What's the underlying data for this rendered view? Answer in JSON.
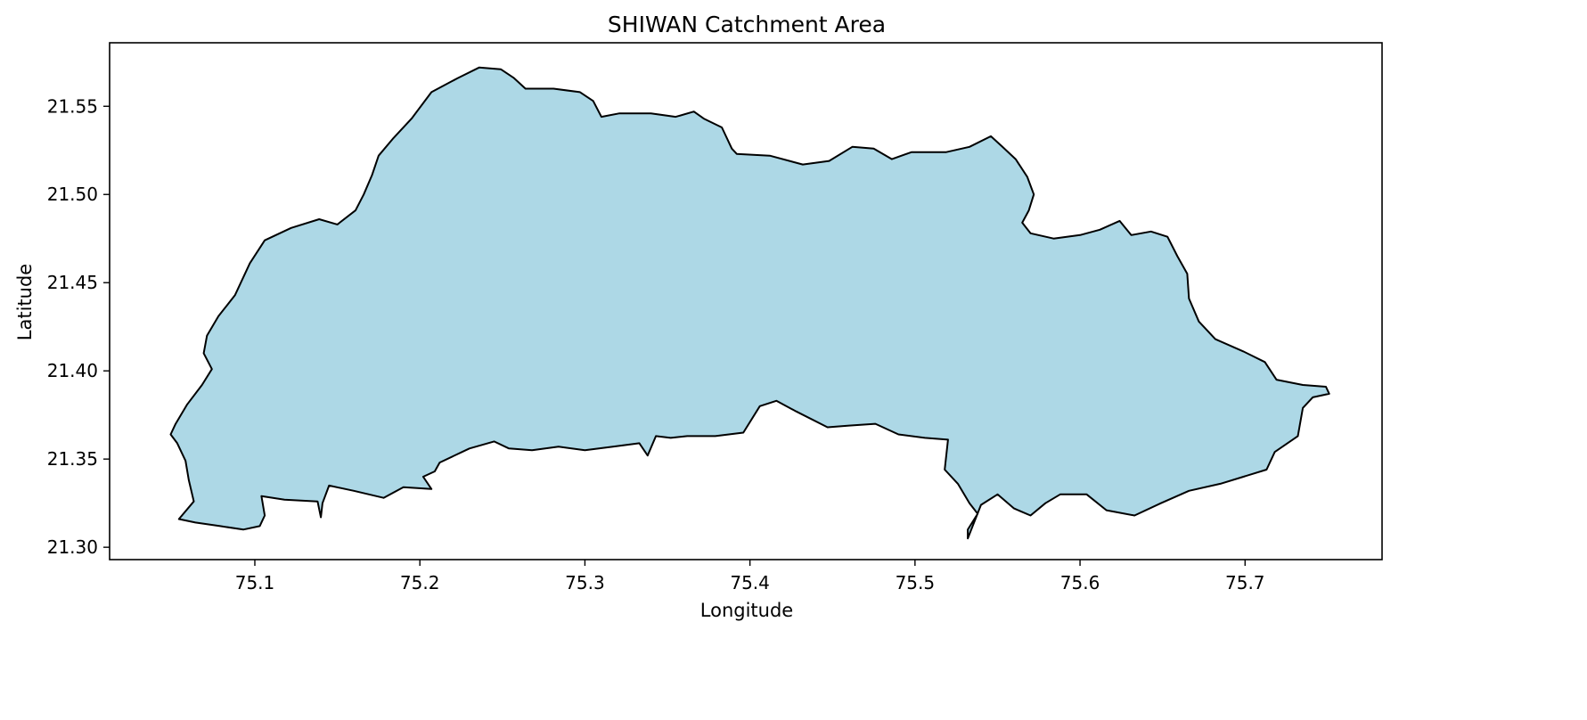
{
  "chart_data": {
    "type": "map",
    "title": "SHIWAN Catchment Area",
    "xlabel": "Longitude",
    "ylabel": "Latitude",
    "xlim": [
      75.012,
      75.783
    ],
    "ylim": [
      21.293,
      21.586
    ],
    "xticks": [
      "75.1",
      "75.2",
      "75.3",
      "75.4",
      "75.5",
      "75.6",
      "75.7"
    ],
    "yticks": [
      "21.30",
      "21.35",
      "21.40",
      "21.45",
      "21.50",
      "21.55"
    ],
    "grid": false,
    "legend": "none",
    "colors": {
      "fill": "#add8e6",
      "edge": "#000000"
    },
    "boundary": [
      [
        75.054,
        21.316
      ],
      [
        75.063,
        21.326
      ],
      [
        75.06,
        21.338
      ],
      [
        75.058,
        21.349
      ],
      [
        75.053,
        21.359
      ],
      [
        75.049,
        21.364
      ],
      [
        75.052,
        21.37
      ],
      [
        75.059,
        21.381
      ],
      [
        75.068,
        21.392
      ],
      [
        75.074,
        21.401
      ],
      [
        75.069,
        21.41
      ],
      [
        75.071,
        21.42
      ],
      [
        75.078,
        21.431
      ],
      [
        75.088,
        21.443
      ],
      [
        75.097,
        21.461
      ],
      [
        75.106,
        21.474
      ],
      [
        75.122,
        21.481
      ],
      [
        75.139,
        21.486
      ],
      [
        75.15,
        21.483
      ],
      [
        75.161,
        21.491
      ],
      [
        75.166,
        21.5
      ],
      [
        75.171,
        21.511
      ],
      [
        75.175,
        21.522
      ],
      [
        75.184,
        21.532
      ],
      [
        75.195,
        21.543
      ],
      [
        75.207,
        21.558
      ],
      [
        75.223,
        21.566
      ],
      [
        75.236,
        21.572
      ],
      [
        75.249,
        21.571
      ],
      [
        75.257,
        21.566
      ],
      [
        75.264,
        21.56
      ],
      [
        75.281,
        21.56
      ],
      [
        75.297,
        21.558
      ],
      [
        75.305,
        21.553
      ],
      [
        75.31,
        21.544
      ],
      [
        75.321,
        21.546
      ],
      [
        75.34,
        21.546
      ],
      [
        75.355,
        21.544
      ],
      [
        75.366,
        21.547
      ],
      [
        75.372,
        21.543
      ],
      [
        75.383,
        21.538
      ],
      [
        75.389,
        21.526
      ],
      [
        75.392,
        21.523
      ],
      [
        75.412,
        21.522
      ],
      [
        75.432,
        21.517
      ],
      [
        75.448,
        21.519
      ],
      [
        75.462,
        21.527
      ],
      [
        75.475,
        21.526
      ],
      [
        75.486,
        21.52
      ],
      [
        75.498,
        21.524
      ],
      [
        75.519,
        21.524
      ],
      [
        75.533,
        21.527
      ],
      [
        75.546,
        21.533
      ],
      [
        75.553,
        21.527
      ],
      [
        75.561,
        21.52
      ],
      [
        75.568,
        21.51
      ],
      [
        75.572,
        21.5
      ],
      [
        75.569,
        21.491
      ],
      [
        75.565,
        21.484
      ],
      [
        75.57,
        21.478
      ],
      [
        75.584,
        21.475
      ],
      [
        75.6,
        21.477
      ],
      [
        75.612,
        21.48
      ],
      [
        75.624,
        21.485
      ],
      [
        75.631,
        21.477
      ],
      [
        75.643,
        21.479
      ],
      [
        75.653,
        21.476
      ],
      [
        75.659,
        21.465
      ],
      [
        75.665,
        21.455
      ],
      [
        75.666,
        21.441
      ],
      [
        75.672,
        21.428
      ],
      [
        75.682,
        21.418
      ],
      [
        75.699,
        21.411
      ],
      [
        75.712,
        21.405
      ],
      [
        75.719,
        21.395
      ],
      [
        75.735,
        21.392
      ],
      [
        75.749,
        21.391
      ],
      [
        75.751,
        21.387
      ],
      [
        75.741,
        21.385
      ],
      [
        75.735,
        21.379
      ],
      [
        75.732,
        21.363
      ],
      [
        75.718,
        21.354
      ],
      [
        75.713,
        21.344
      ],
      [
        75.699,
        21.34
      ],
      [
        75.685,
        21.336
      ],
      [
        75.666,
        21.332
      ],
      [
        75.649,
        21.325
      ],
      [
        75.633,
        21.318
      ],
      [
        75.616,
        21.321
      ],
      [
        75.604,
        21.33
      ],
      [
        75.588,
        21.33
      ],
      [
        75.579,
        21.325
      ],
      [
        75.57,
        21.318
      ],
      [
        75.56,
        21.322
      ],
      [
        75.55,
        21.33
      ],
      [
        75.54,
        21.324
      ],
      [
        75.532,
        21.305
      ],
      [
        75.532,
        21.31
      ],
      [
        75.538,
        21.319
      ],
      [
        75.533,
        21.325
      ],
      [
        75.526,
        21.336
      ],
      [
        75.518,
        21.344
      ],
      [
        75.52,
        21.361
      ],
      [
        75.506,
        21.362
      ],
      [
        75.49,
        21.364
      ],
      [
        75.476,
        21.37
      ],
      [
        75.46,
        21.369
      ],
      [
        75.447,
        21.368
      ],
      [
        75.428,
        21.377
      ],
      [
        75.416,
        21.383
      ],
      [
        75.406,
        21.38
      ],
      [
        75.396,
        21.365
      ],
      [
        75.379,
        21.363
      ],
      [
        75.362,
        21.363
      ],
      [
        75.352,
        21.362
      ],
      [
        75.343,
        21.363
      ],
      [
        75.338,
        21.352
      ],
      [
        75.333,
        21.359
      ],
      [
        75.317,
        21.357
      ],
      [
        75.3,
        21.355
      ],
      [
        75.284,
        21.357
      ],
      [
        75.268,
        21.355
      ],
      [
        75.254,
        21.356
      ],
      [
        75.245,
        21.36
      ],
      [
        75.23,
        21.356
      ],
      [
        75.212,
        21.348
      ],
      [
        75.209,
        21.343
      ],
      [
        75.202,
        21.34
      ],
      [
        75.207,
        21.333
      ],
      [
        75.19,
        21.334
      ],
      [
        75.178,
        21.328
      ],
      [
        75.16,
        21.332
      ],
      [
        75.145,
        21.335
      ],
      [
        75.141,
        21.325
      ],
      [
        75.14,
        21.317
      ],
      [
        75.138,
        21.326
      ],
      [
        75.118,
        21.327
      ],
      [
        75.104,
        21.329
      ],
      [
        75.106,
        21.318
      ],
      [
        75.103,
        21.312
      ],
      [
        75.093,
        21.31
      ],
      [
        75.079,
        21.312
      ],
      [
        75.064,
        21.314
      ]
    ]
  }
}
